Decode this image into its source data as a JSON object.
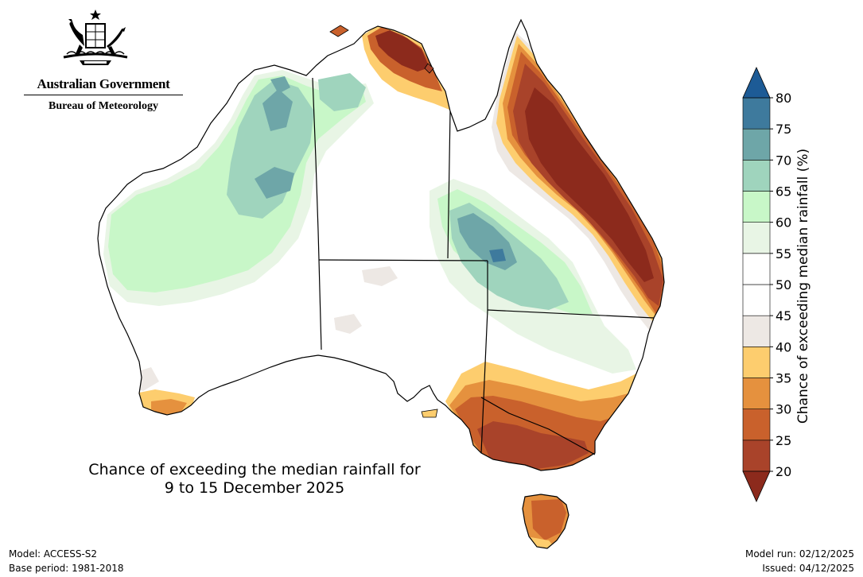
{
  "header": {
    "government": "Australian Government",
    "agency": "Bureau of Meteorology"
  },
  "map": {
    "title_line1": "Chance of exceeding the median rainfall for",
    "title_line2": "9 to 15 December 2025",
    "colors": {
      "land_base": "#ffffff",
      "below_40_45": "#ede8e4",
      "below_35_40": "#fdcd6e",
      "below_30_35": "#e5913e",
      "below_25_30": "#c9612c",
      "below_20_25": "#a9432a",
      "below_under_20": "#8c2a1c",
      "above_55_60": "#e8f5e5",
      "above_60_65": "#c8f7c8",
      "above_65_70": "#9fd4bd",
      "above_70_75": "#6ea6a8",
      "above_75_80": "#3e7a9d",
      "above_over_80": "#1d5b96"
    }
  },
  "legend": {
    "title": "Chance of exceeding median rainfall (%)",
    "ticks": [
      "20",
      "25",
      "30",
      "35",
      "40",
      "45",
      "50",
      "55",
      "60",
      "65",
      "70",
      "75",
      "80"
    ],
    "bins": [
      {
        "color": "#a9432a"
      },
      {
        "color": "#c9612c"
      },
      {
        "color": "#e5913e"
      },
      {
        "color": "#fdcd6e"
      },
      {
        "color": "#ede8e4"
      },
      {
        "color": "#ffffff"
      },
      {
        "color": "#ffffff"
      },
      {
        "color": "#e8f5e5"
      },
      {
        "color": "#c8f7c8"
      },
      {
        "color": "#9fd4bd"
      },
      {
        "color": "#6ea6a8"
      },
      {
        "color": "#3e7a9d"
      }
    ],
    "low_arrow_color": "#8c2a1c",
    "high_arrow_color": "#1d5b96"
  },
  "footer": {
    "model": "Model: ACCESS-S2",
    "base_period": "Base period: 1981-2018",
    "model_run": "Model run: 02/12/2025",
    "issued": "Issued: 04/12/2025"
  }
}
